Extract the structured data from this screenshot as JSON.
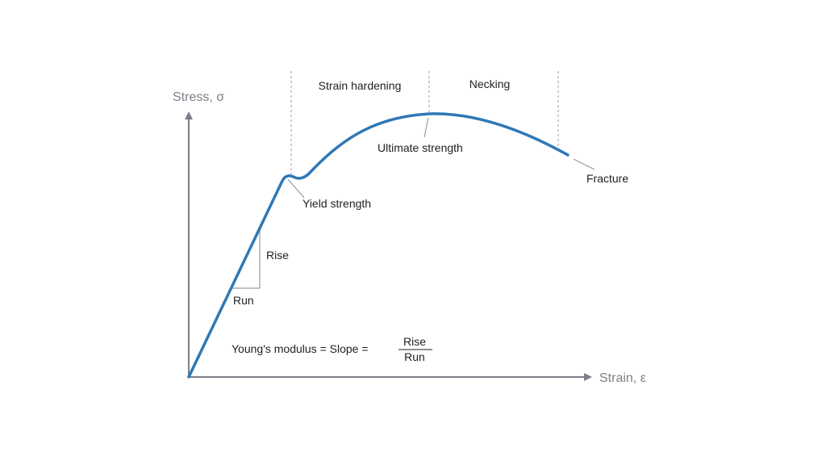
{
  "axes": {
    "y_label": "Stress, σ",
    "x_label": "Strain, ε"
  },
  "regions": {
    "strain_hardening": "Strain hardening",
    "necking": "Necking"
  },
  "annotations": {
    "yield_strength": "Yield strength",
    "ultimate_strength": "Ultimate strength",
    "fracture": "Fracture",
    "rise": "Rise",
    "run": "Run"
  },
  "formula": {
    "lhs": "Young's modulus = Slope =",
    "numerator": "Rise",
    "denominator": "Run"
  },
  "colors": {
    "curve": "#2e78b7",
    "axis": "#7a7f87",
    "guide": "#9a9ea5"
  }
}
